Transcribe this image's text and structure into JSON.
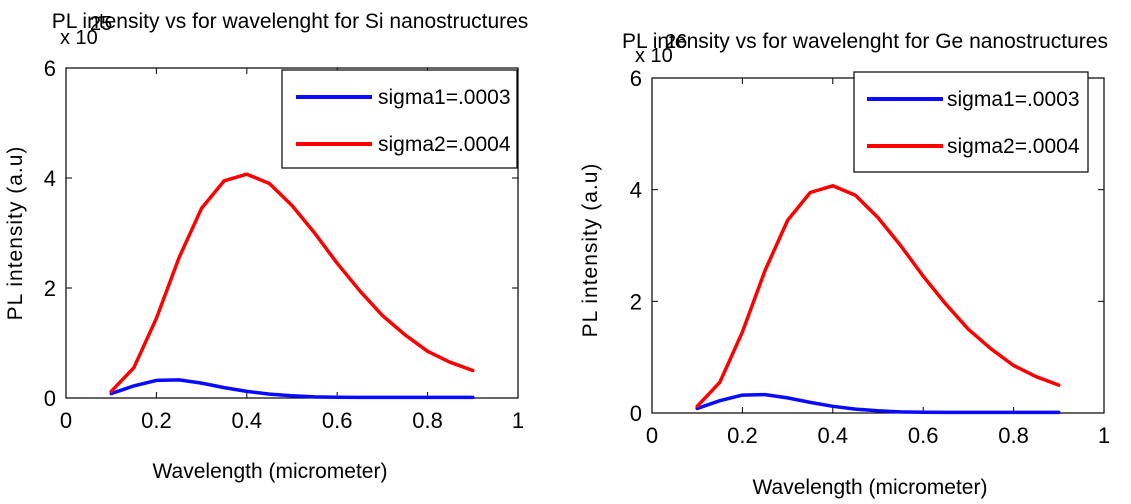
{
  "colors": {
    "sigma1": "#0a0aff",
    "sigma2": "#ff0000",
    "axis": "#000000"
  },
  "chart_data": [
    {
      "type": "line",
      "title": "PL intensity vs for wavelenght for Si nanostructures",
      "exponent": "x 10",
      "exponent_power": "25",
      "xlabel": "Wavelength (micrometer)",
      "ylabel": "PL intensity (a.u)",
      "xlim": [
        0,
        1
      ],
      "ylim": [
        0,
        6
      ],
      "xticks": [
        0,
        0.2,
        0.4,
        0.6,
        0.8,
        1
      ],
      "xtick_labels": [
        "0",
        "0.2",
        "0.4",
        "0.6",
        "0.8",
        "1"
      ],
      "yticks": [
        0,
        2,
        4,
        6
      ],
      "ytick_labels": [
        "0",
        "2",
        "4",
        "6"
      ],
      "legend_position": "top-right",
      "grid": false,
      "series": [
        {
          "name": "sigma1=.0003",
          "x": [
            0.1,
            0.15,
            0.2,
            0.25,
            0.3,
            0.35,
            0.4,
            0.45,
            0.5,
            0.55,
            0.6,
            0.65,
            0.7,
            0.75,
            0.8,
            0.85,
            0.9
          ],
          "y": [
            0.08,
            0.22,
            0.32,
            0.33,
            0.27,
            0.19,
            0.12,
            0.07,
            0.04,
            0.02,
            0.015,
            0.01,
            0.01,
            0.01,
            0.01,
            0.01,
            0.01
          ]
        },
        {
          "name": "sigma2=.0004",
          "x": [
            0.1,
            0.15,
            0.2,
            0.25,
            0.3,
            0.35,
            0.4,
            0.45,
            0.5,
            0.55,
            0.6,
            0.65,
            0.7,
            0.75,
            0.8,
            0.85,
            0.9
          ],
          "y": [
            0.12,
            0.55,
            1.45,
            2.55,
            3.45,
            3.95,
            4.07,
            3.9,
            3.5,
            3.0,
            2.45,
            1.95,
            1.5,
            1.15,
            0.85,
            0.65,
            0.5
          ]
        }
      ]
    },
    {
      "type": "line",
      "title": "PL intensity vs for wavelenght for Ge nanostructures",
      "exponent": "x 10",
      "exponent_power": "26",
      "xlabel": "Wavelength (micrometer)",
      "ylabel": "PL intensity (a.u)",
      "xlim": [
        0,
        1
      ],
      "ylim": [
        0,
        6
      ],
      "xticks": [
        0,
        0.2,
        0.4,
        0.6,
        0.8,
        1
      ],
      "xtick_labels": [
        "0",
        "0.2",
        "0.4",
        "0.6",
        "0.8",
        "1"
      ],
      "yticks": [
        0,
        2,
        4,
        6
      ],
      "ytick_labels": [
        "0",
        "2",
        "4",
        "6"
      ],
      "legend_position": "top-right",
      "grid": false,
      "series": [
        {
          "name": "sigma1=.0003",
          "x": [
            0.1,
            0.15,
            0.2,
            0.25,
            0.3,
            0.35,
            0.4,
            0.45,
            0.5,
            0.55,
            0.6,
            0.65,
            0.7,
            0.75,
            0.8,
            0.85,
            0.9
          ],
          "y": [
            0.08,
            0.22,
            0.32,
            0.33,
            0.27,
            0.19,
            0.12,
            0.07,
            0.04,
            0.02,
            0.015,
            0.01,
            0.01,
            0.01,
            0.01,
            0.01,
            0.01
          ]
        },
        {
          "name": "sigma2=.0004",
          "x": [
            0.1,
            0.15,
            0.2,
            0.25,
            0.3,
            0.35,
            0.4,
            0.45,
            0.5,
            0.55,
            0.6,
            0.65,
            0.7,
            0.75,
            0.8,
            0.85,
            0.9
          ],
          "y": [
            0.12,
            0.55,
            1.45,
            2.55,
            3.45,
            3.95,
            4.07,
            3.9,
            3.5,
            3.0,
            2.45,
            1.95,
            1.5,
            1.15,
            0.85,
            0.65,
            0.5
          ]
        }
      ]
    }
  ]
}
